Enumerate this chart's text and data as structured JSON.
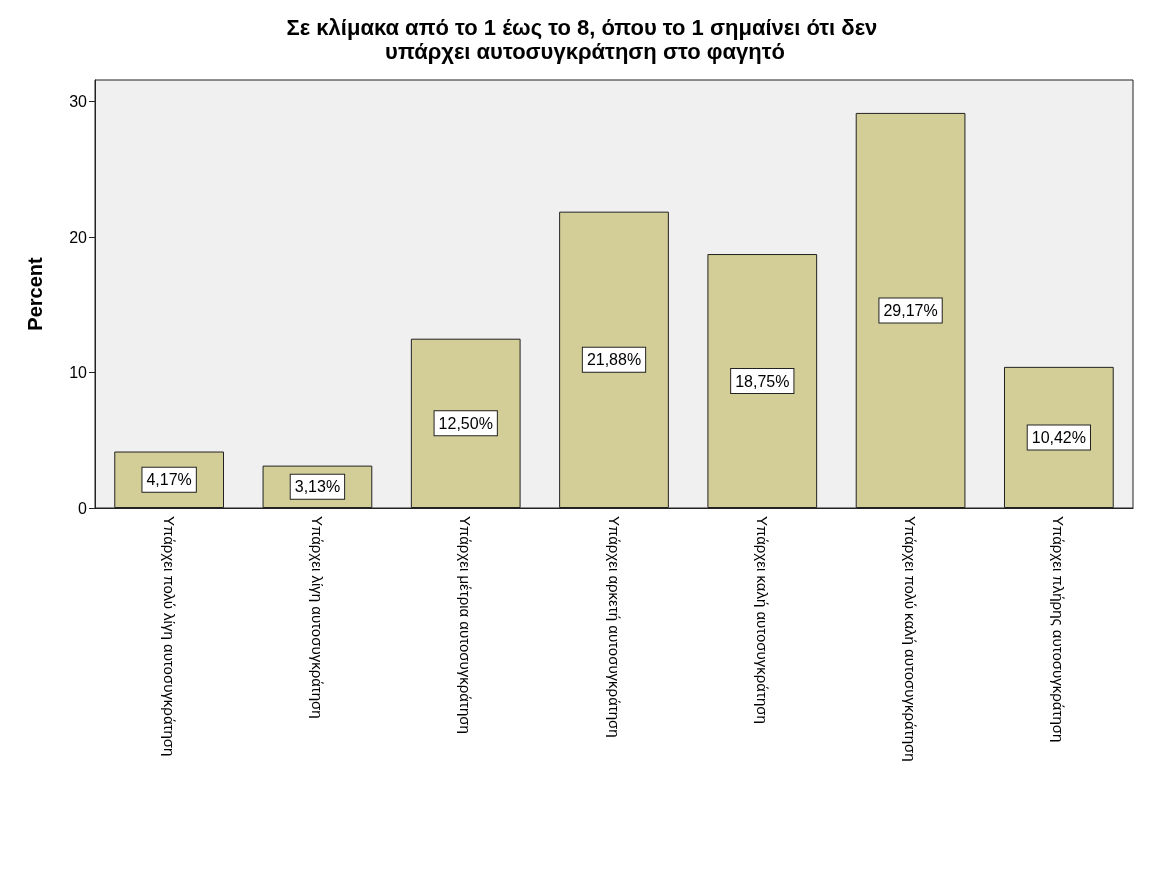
{
  "chart_data": {
    "type": "bar",
    "title": "Σε κλίμακα από το 1 έως το 8, όπου το 1 σημαίνει ότι δεν υπάρχει αυτοσυγκράτηση στο φαγητό",
    "ylabel": "Percent",
    "categories": [
      "Υπάρχει πολύ λίγη αυτοσυγκράτηση",
      "Υπάρχει λίγη αυτοσυγκράτηση",
      "Υπάρχει μέτρια αυτοσυγκράτηση",
      "Υπάρχει αρκετή αυτοσυγκράτηση",
      "Υπάρχει καλή αυτοσυγκράτηση",
      "Υπάρχει πολύ καλή αυτοσυγκράτηση",
      "Υπάρχει πλήρης αυτοσυγκράτηση"
    ],
    "values": [
      4.17,
      3.13,
      12.5,
      21.88,
      18.75,
      29.17,
      10.42
    ],
    "value_labels": [
      "4,17%",
      "3,13%",
      "12,50%",
      "21,88%",
      "18,75%",
      "29,17%",
      "10,42%"
    ],
    "color": "#d3ce97",
    "ylim": [
      0,
      31.6
    ],
    "yticks": [
      0,
      10,
      20,
      30
    ],
    "grid": false
  }
}
